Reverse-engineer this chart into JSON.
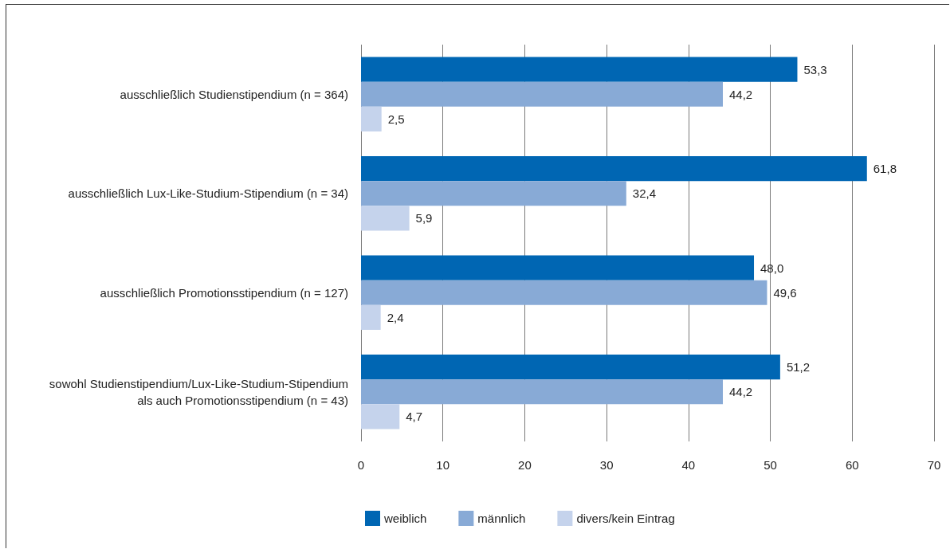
{
  "chart_data": {
    "type": "bar",
    "orientation": "horizontal",
    "categories": [
      "ausschließlich Studienstipendium (n = 364)",
      "ausschließlich Lux-Like-Studium-Stipendium (n = 34)",
      "ausschließlich Promotionsstipendium (n = 127)",
      "sowohl Studienstipendium/Lux-Like-Studium-Stipendium\nals auch Promotionsstipendium (n = 43)"
    ],
    "series": [
      {
        "name": "weiblich",
        "color": "#0066b3",
        "values": [
          53.3,
          61.8,
          48.0,
          51.2
        ],
        "value_labels": [
          "53,3",
          "61,8",
          "48,0",
          "51,2"
        ]
      },
      {
        "name": "männlich",
        "color": "#88aad6",
        "values": [
          44.2,
          32.4,
          49.6,
          44.2
        ],
        "value_labels": [
          "44,2",
          "32,4",
          "49,6",
          "44,2"
        ]
      },
      {
        "name": "divers/kein Eintrag",
        "color": "#c5d3ec",
        "values": [
          2.5,
          5.9,
          2.4,
          4.7
        ],
        "value_labels": [
          "2,5",
          "5,9",
          "2,4",
          "4,7"
        ]
      }
    ],
    "xlim": [
      0,
      70
    ],
    "xticks": [
      0,
      10,
      20,
      30,
      40,
      50,
      60,
      70
    ],
    "grid": "x",
    "legend": "bottom"
  }
}
